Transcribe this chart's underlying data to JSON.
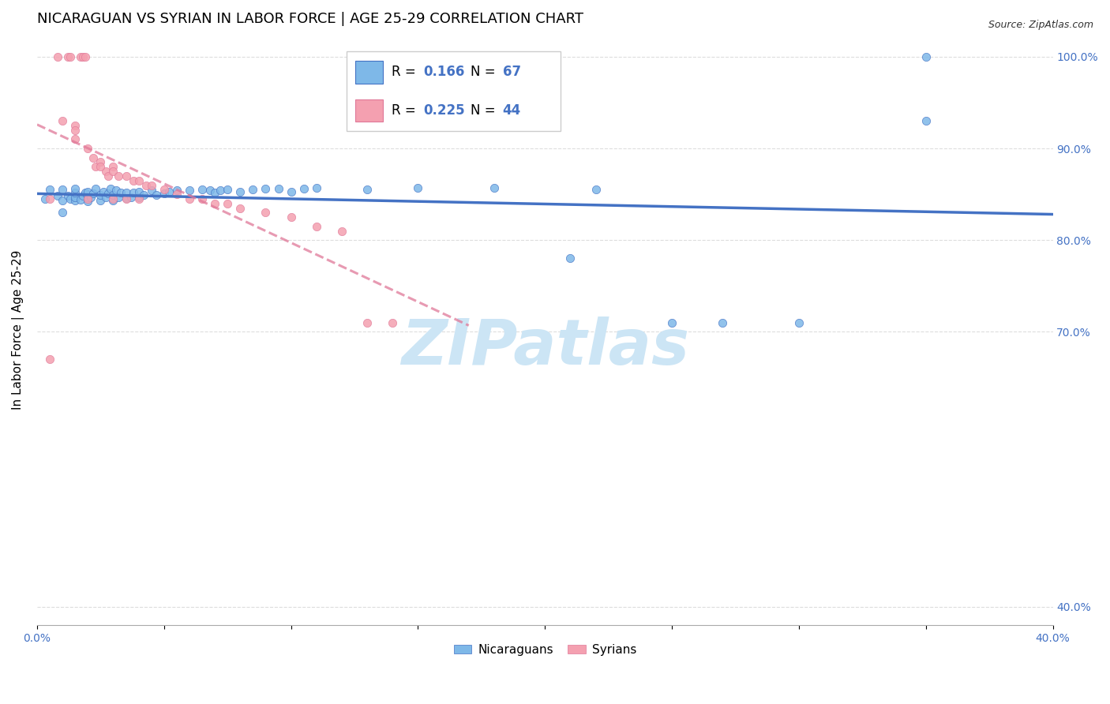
{
  "title": "NICARAGUAN VS SYRIAN IN LABOR FORCE | AGE 25-29 CORRELATION CHART",
  "source": "Source: ZipAtlas.com",
  "ylabel": "In Labor Force | Age 25-29",
  "xlim": [
    0.0,
    0.4
  ],
  "ylim": [
    0.38,
    1.025
  ],
  "legend_r_nic": "0.166",
  "legend_n_nic": "67",
  "legend_r_syr": "0.225",
  "legend_n_syr": "44",
  "color_nicaraguan": "#7eb8e8",
  "color_syrian": "#f4a0b0",
  "color_blue_text": "#4472c4",
  "color_pink_line": "#e07898",
  "color_blue_line": "#4472c4",
  "watermark": "ZIPatlas",
  "watermark_color": "#cce5f5",
  "background_color": "#ffffff",
  "grid_color": "#dddddd",
  "title_fontsize": 13,
  "axis_label_fontsize": 11,
  "tick_fontsize": 10,
  "nicaraguan_x": [
    0.003,
    0.005,
    0.008,
    0.01,
    0.01,
    0.01,
    0.012,
    0.013,
    0.015,
    0.015,
    0.015,
    0.015,
    0.017,
    0.018,
    0.019,
    0.02,
    0.02,
    0.02,
    0.021,
    0.022,
    0.023,
    0.025,
    0.025,
    0.026,
    0.027,
    0.028,
    0.029,
    0.03,
    0.03,
    0.031,
    0.032,
    0.033,
    0.035,
    0.035,
    0.037,
    0.038,
    0.04,
    0.04,
    0.042,
    0.045,
    0.047,
    0.05,
    0.052,
    0.055,
    0.06,
    0.065,
    0.068,
    0.07,
    0.072,
    0.075,
    0.08,
    0.085,
    0.09,
    0.095,
    0.1,
    0.105,
    0.11,
    0.13,
    0.15,
    0.18,
    0.21,
    0.22,
    0.25,
    0.27,
    0.3,
    0.35,
    0.35
  ],
  "nicaraguan_y": [
    0.845,
    0.855,
    0.848,
    0.83,
    0.843,
    0.855,
    0.848,
    0.845,
    0.843,
    0.847,
    0.852,
    0.856,
    0.844,
    0.848,
    0.852,
    0.842,
    0.847,
    0.853,
    0.847,
    0.851,
    0.856,
    0.843,
    0.849,
    0.853,
    0.847,
    0.851,
    0.856,
    0.843,
    0.849,
    0.854,
    0.847,
    0.852,
    0.846,
    0.852,
    0.847,
    0.852,
    0.847,
    0.853,
    0.849,
    0.854,
    0.849,
    0.851,
    0.853,
    0.854,
    0.854,
    0.855,
    0.854,
    0.852,
    0.854,
    0.855,
    0.853,
    0.855,
    0.856,
    0.856,
    0.853,
    0.856,
    0.857,
    0.855,
    0.857,
    0.857,
    0.78,
    0.855,
    0.71,
    0.71,
    0.71,
    0.93,
    1.0
  ],
  "syrian_x": [
    0.005,
    0.005,
    0.008,
    0.01,
    0.012,
    0.013,
    0.015,
    0.015,
    0.017,
    0.018,
    0.019,
    0.02,
    0.022,
    0.023,
    0.025,
    0.027,
    0.028,
    0.03,
    0.03,
    0.032,
    0.035,
    0.038,
    0.04,
    0.043,
    0.045,
    0.05,
    0.055,
    0.06,
    0.065,
    0.07,
    0.075,
    0.08,
    0.09,
    0.1,
    0.11,
    0.12,
    0.13,
    0.14,
    0.015,
    0.02,
    0.025,
    0.03,
    0.035,
    0.04
  ],
  "syrian_y": [
    0.845,
    0.67,
    1.0,
    0.93,
    1.0,
    1.0,
    0.925,
    0.91,
    1.0,
    1.0,
    1.0,
    0.9,
    0.89,
    0.88,
    0.885,
    0.875,
    0.87,
    0.88,
    0.875,
    0.87,
    0.87,
    0.865,
    0.865,
    0.86,
    0.86,
    0.855,
    0.85,
    0.845,
    0.845,
    0.84,
    0.84,
    0.835,
    0.83,
    0.825,
    0.815,
    0.81,
    0.71,
    0.71,
    0.92,
    0.845,
    0.88,
    0.845,
    0.845,
    0.845
  ]
}
